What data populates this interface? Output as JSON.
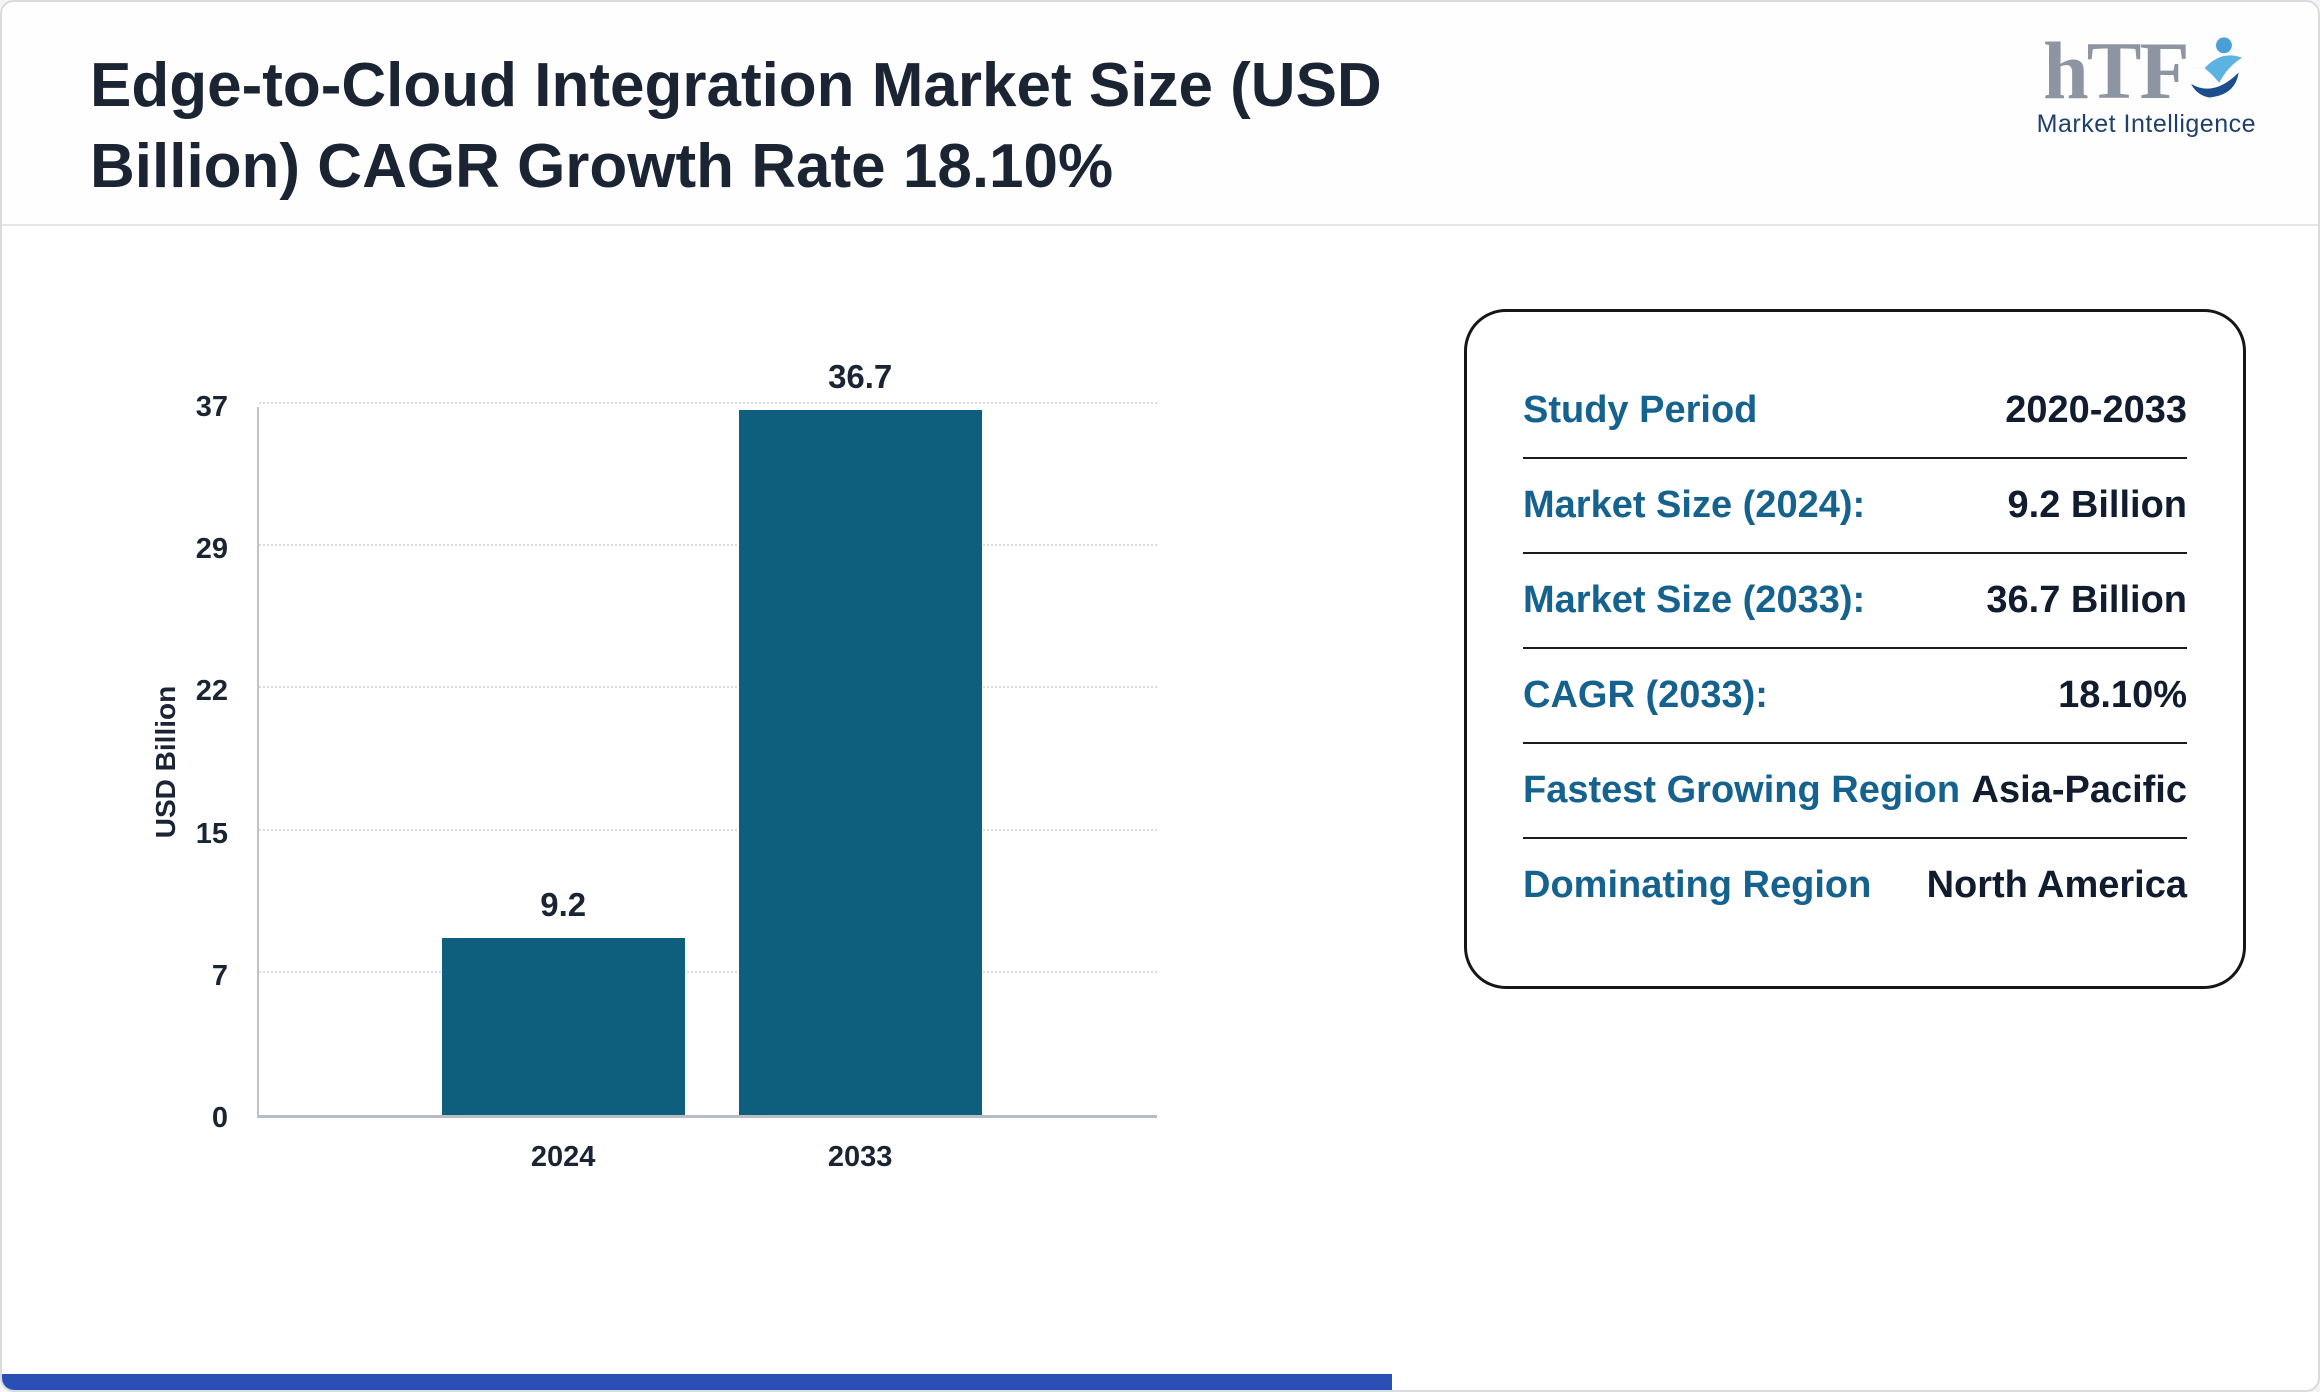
{
  "page": {
    "title": "Edge-to-Cloud Integration Market Size (USD Billion) CAGR Growth Rate 18.10%",
    "logo": {
      "text": "hTF",
      "subtext": "Market Intelligence"
    }
  },
  "chart_data": {
    "type": "bar",
    "categories": [
      "2024",
      "2033"
    ],
    "values": [
      9.2,
      36.7
    ],
    "bar_labels": [
      "9.2",
      "36.7"
    ],
    "title": "",
    "xlabel": "",
    "ylabel": "USD Billion",
    "yticks": [
      0,
      7,
      15,
      22,
      29,
      37
    ],
    "ylim": [
      0,
      37
    ],
    "bar_color": "#0e5e7e",
    "grid": "dotted horizontal gridlines",
    "legend": "none"
  },
  "summary": {
    "rows": [
      {
        "label": "Study Period",
        "value": "2020-2033"
      },
      {
        "label": "Market Size (2024):",
        "value": "9.2 Billion"
      },
      {
        "label": "Market Size (2033):",
        "value": "36.7 Billion"
      },
      {
        "label": "CAGR (2033):",
        "value": "18.10%"
      },
      {
        "label": "Fastest Growing Region",
        "value": "Asia-Pacific"
      },
      {
        "label": "Dominating Region",
        "value": "North America"
      }
    ],
    "label_color": "#15628e",
    "value_color": "#111c2e"
  }
}
